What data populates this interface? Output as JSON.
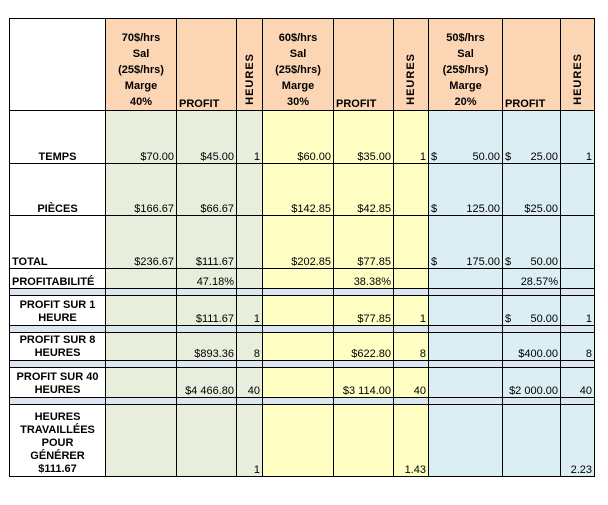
{
  "header": {
    "groups": [
      {
        "rate": "70$/hrs",
        "sal": "Sal",
        "sal_amount": "(25$/hrs)",
        "marge": "Marge",
        "pct": "40%"
      },
      {
        "rate": "60$/hrs",
        "sal": "Sal",
        "sal_amount": "(25$/hrs)",
        "marge": "Marge",
        "pct": "30%"
      },
      {
        "rate": "50$/hrs",
        "sal": "Sal",
        "sal_amount": "(25$/hrs)",
        "marge": "Marge",
        "pct": "20%"
      }
    ],
    "profit_label": "PROFIT",
    "heures_label": "HEURES"
  },
  "rows": {
    "temps": {
      "label": "TEMPS",
      "g1": [
        "$70.00",
        "$45.00",
        "1"
      ],
      "g2": [
        "$60.00",
        "$35.00",
        "1"
      ],
      "g3": [
        "$",
        "50.00",
        "$",
        "25.00",
        "1"
      ]
    },
    "pieces": {
      "label": "PIÈCES",
      "g1": [
        "$166.67",
        "$66.67",
        ""
      ],
      "g2": [
        "$142.85",
        "$42.85",
        ""
      ],
      "g3": [
        "$",
        "125.00",
        "$25.00",
        ""
      ]
    },
    "total": {
      "label": "TOTAL",
      "g1": [
        "$236.67",
        "$111.67",
        ""
      ],
      "g2": [
        "$202.85",
        "$77.85",
        ""
      ],
      "g3": [
        "$",
        "175.00",
        "$",
        "50.00",
        ""
      ]
    },
    "profitabilite": {
      "label": "PROFITABILITÉ",
      "g1": "47.18%",
      "g2": "38.38%",
      "g3": "28.57%"
    },
    "profit1": {
      "label1": "PROFIT SUR 1",
      "label2": "HEURE",
      "g1": [
        "$111.67",
        "1"
      ],
      "g2": [
        "$77.85",
        "1"
      ],
      "g3": [
        "$",
        "50.00",
        "1"
      ]
    },
    "profit8": {
      "label1": "PROFIT SUR 8",
      "label2": "HEURES",
      "g1": [
        "$893.36",
        "8"
      ],
      "g2": [
        "$622.80",
        "8"
      ],
      "g3": [
        "$400.00",
        "8"
      ]
    },
    "profit40": {
      "label1": "PROFIT SUR 40",
      "label2": "HEURES",
      "g1": [
        "$4 466.80",
        "40"
      ],
      "g2": [
        "$3 114.00",
        "40"
      ],
      "g3": [
        "$2 000.00",
        "40"
      ]
    },
    "heures": {
      "label1": "HEURES",
      "label2": "TRAVAILLÉES",
      "label3": "POUR",
      "label4": "GÉNÉRER",
      "label5": "$111.67",
      "g1": "1",
      "g2": "1.43",
      "g3": "2.23"
    }
  }
}
